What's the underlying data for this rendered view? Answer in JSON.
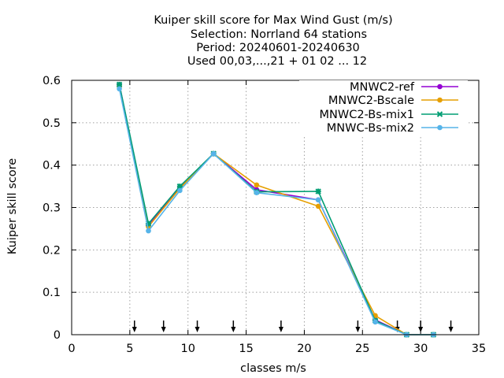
{
  "chart_data": {
    "type": "line",
    "title_lines": [
      "Kuiper skill score  for Max Wind Gust (m/s)",
      "Selection: Norrland     64 stations",
      "Period: 20240601-20240630",
      "Used 00,03,...,21 + 01 02 ... 12"
    ],
    "xlabel": "classes m/s",
    "ylabel": "Kuiper skill score",
    "xlim": [
      0,
      35
    ],
    "ylim": [
      0,
      0.6
    ],
    "xticks": [
      0,
      5,
      10,
      15,
      20,
      25,
      30,
      35
    ],
    "xtick_labels": [
      "0",
      "5",
      "10",
      "15",
      "20",
      "25",
      "30",
      "35"
    ],
    "yticks": [
      0,
      0.1,
      0.2,
      0.3,
      0.4,
      0.5,
      0.6
    ],
    "ytick_labels": [
      "0",
      "0.1",
      "0.2",
      "0.3",
      "0.4",
      "0.5",
      "0.6"
    ],
    "grid": true,
    "legend_position": "top-right",
    "threshold_arrows_x": [
      5.4,
      7.9,
      10.8,
      13.9,
      18.0,
      24.6,
      28.0,
      30.0,
      32.6
    ],
    "series": [
      {
        "name": "MNWC2-ref",
        "color": "#9400d3",
        "marker": "circle",
        "x": [
          4.1,
          6.6,
          9.3,
          12.2,
          15.9,
          21.2,
          26.1,
          28.8,
          31.1
        ],
        "y": [
          0.59,
          0.258,
          0.348,
          0.427,
          0.342,
          0.318,
          0.035,
          0.0,
          0.0
        ]
      },
      {
        "name": "MNWC2-Bscale",
        "color": "#e69f00",
        "marker": "circle",
        "x": [
          4.1,
          6.6,
          9.3,
          12.2,
          15.9,
          21.2,
          26.1,
          28.8,
          31.1
        ],
        "y": [
          0.585,
          0.255,
          0.345,
          0.427,
          0.353,
          0.303,
          0.045,
          0.0,
          0.0
        ]
      },
      {
        "name": "MNWC2-Bs-mix1",
        "color": "#009e73",
        "marker": "cross",
        "x": [
          4.1,
          6.6,
          9.3,
          12.2,
          15.9,
          21.2,
          26.1,
          28.8,
          31.1
        ],
        "y": [
          0.59,
          0.262,
          0.35,
          0.427,
          0.337,
          0.338,
          0.033,
          0.0,
          0.0
        ]
      },
      {
        "name": "MNWC-Bs-mix2",
        "color": "#56b4e9",
        "marker": "circle",
        "x": [
          4.1,
          6.6,
          9.3,
          12.2,
          15.9,
          21.2,
          26.1,
          28.8,
          31.1
        ],
        "y": [
          0.58,
          0.245,
          0.34,
          0.427,
          0.335,
          0.318,
          0.03,
          0.0,
          0.0
        ]
      }
    ]
  }
}
